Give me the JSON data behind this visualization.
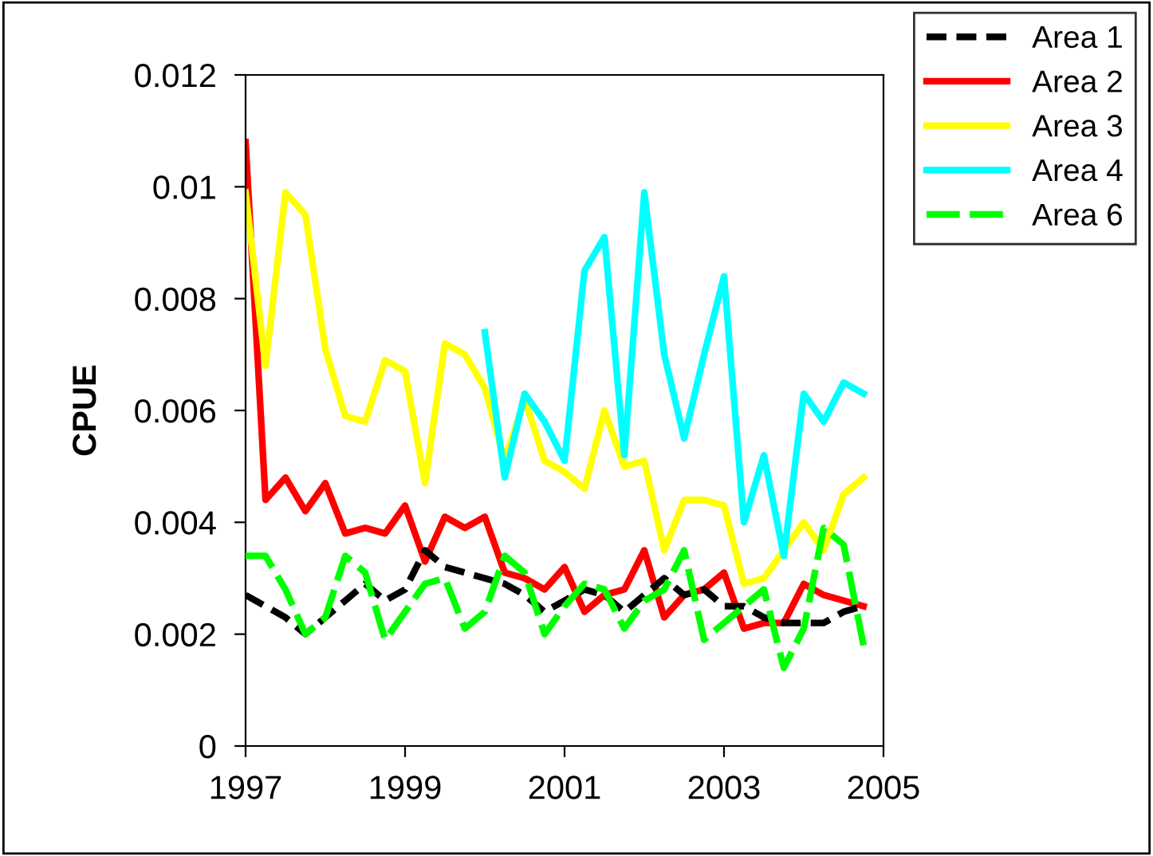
{
  "chart_data": {
    "type": "line",
    "ylabel": "CPUE",
    "x": [
      1997,
      1997.25,
      1997.5,
      1997.75,
      1998,
      1998.25,
      1998.5,
      1998.75,
      1999,
      1999.25,
      1999.5,
      1999.75,
      2000,
      2000.25,
      2000.5,
      2000.75,
      2001,
      2001.25,
      2001.5,
      2001.75,
      2002,
      2002.25,
      2002.5,
      2002.75,
      2003,
      2003.25,
      2003.5,
      2003.75,
      2004,
      2004.25,
      2004.5,
      2004.75
    ],
    "series": [
      {
        "name": "Area 1",
        "color": "#000000",
        "line_style": "dashed",
        "values": [
          0.0027,
          0.0025,
          0.0023,
          0.002,
          0.0023,
          0.0026,
          0.0029,
          0.0026,
          0.0028,
          0.0035,
          0.0032,
          0.0031,
          0.003,
          0.0029,
          0.0027,
          0.0024,
          0.0026,
          0.0028,
          0.0027,
          0.0024,
          0.0027,
          0.003,
          0.0027,
          0.0028,
          0.0025,
          0.0025,
          0.0023,
          0.0022,
          0.0022,
          0.0022,
          0.0024,
          0.0025
        ]
      },
      {
        "name": "Area 2",
        "color": "#ff0000",
        "line_style": "solid",
        "values": [
          0.0108,
          0.0044,
          0.0048,
          0.0042,
          0.0047,
          0.0038,
          0.0039,
          0.0038,
          0.0043,
          0.0033,
          0.0041,
          0.0039,
          0.0041,
          0.0031,
          0.003,
          0.0028,
          0.0032,
          0.0024,
          0.0027,
          0.0028,
          0.0035,
          0.0023,
          0.0027,
          0.0028,
          0.0031,
          0.0021,
          0.0022,
          0.0022,
          0.0029,
          0.0027,
          0.0026,
          0.0025
        ]
      },
      {
        "name": "Area 3",
        "color": "#ffff00",
        "line_style": "solid",
        "values": [
          0.0099,
          0.0068,
          0.0099,
          0.0095,
          0.0071,
          0.0059,
          0.0058,
          0.0069,
          0.0067,
          0.0047,
          0.0072,
          0.007,
          0.0064,
          0.0051,
          0.0062,
          0.0051,
          0.0049,
          0.0046,
          0.006,
          0.005,
          0.0051,
          0.0035,
          0.0044,
          0.0044,
          0.0043,
          0.0029,
          0.003,
          0.0035,
          0.004,
          0.0035,
          0.0045,
          0.0048
        ]
      },
      {
        "name": "Area 4",
        "color": "#00ffff",
        "line_style": "solid",
        "values": [
          null,
          null,
          null,
          null,
          null,
          null,
          null,
          null,
          null,
          null,
          null,
          null,
          0.0074,
          0.0048,
          0.0063,
          0.0058,
          0.0051,
          0.0085,
          0.0091,
          0.0052,
          0.0099,
          0.007,
          0.0055,
          0.007,
          0.0084,
          0.004,
          0.0052,
          0.0034,
          0.0063,
          0.0058,
          0.0065,
          0.0063
        ]
      },
      {
        "name": "Area 6",
        "color": "#00ff00",
        "line_style": "dashed",
        "values": [
          0.0034,
          0.0034,
          0.0028,
          0.002,
          0.0023,
          0.0034,
          0.0031,
          0.0019,
          0.0024,
          0.0029,
          0.003,
          0.0021,
          0.0024,
          0.0034,
          0.0031,
          0.002,
          0.0025,
          0.0029,
          0.0028,
          0.0021,
          0.0026,
          0.0028,
          0.0035,
          0.0019,
          0.0022,
          0.0025,
          0.0028,
          0.0014,
          0.0021,
          0.0039,
          0.0036,
          0.0018
        ]
      }
    ],
    "xlim": [
      1997,
      2005
    ],
    "xticks": [
      1997,
      1999,
      2001,
      2003,
      2005
    ],
    "ylim": [
      0,
      0.012
    ],
    "yticks": [
      0,
      0.002,
      0.004,
      0.006,
      0.008,
      0.01,
      0.012
    ],
    "grid": false,
    "legend": "top right",
    "marker": "none"
  }
}
